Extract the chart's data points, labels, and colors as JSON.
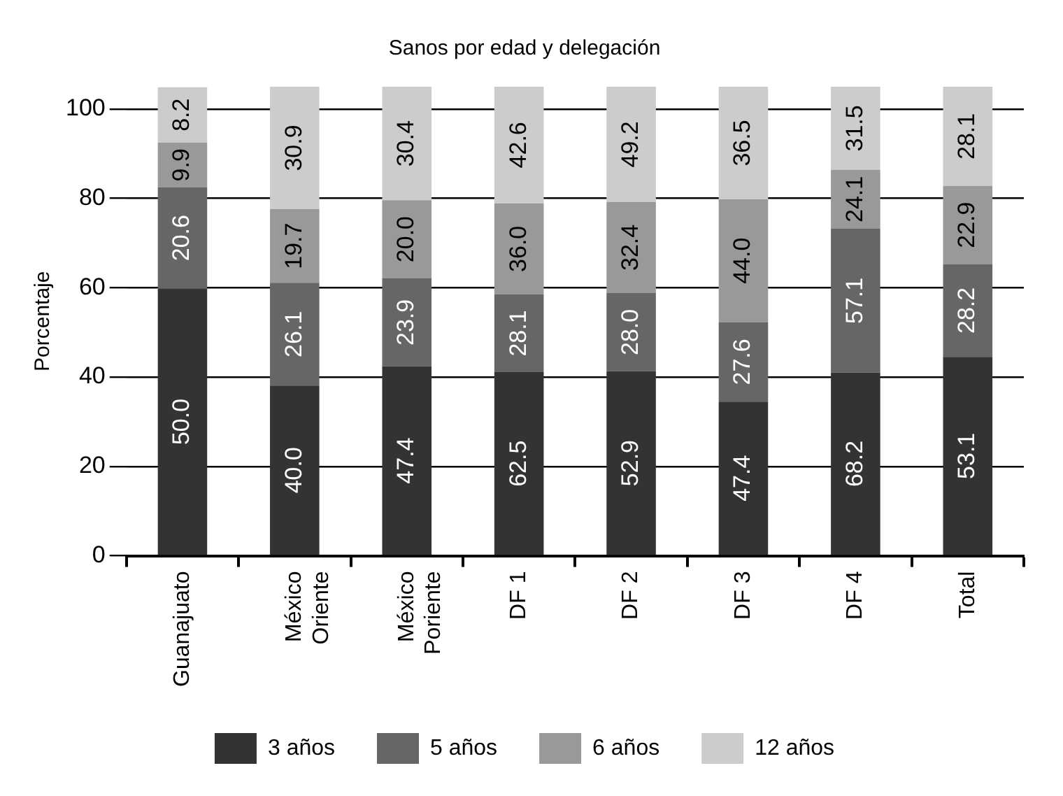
{
  "chart_data": {
    "type": "bar",
    "title": "Sanos por edad y delegación",
    "ylabel": "Porcentaje",
    "categories": [
      "Guanajuato",
      "México Oriente",
      "México Poriente",
      "DF 1",
      "DF 2",
      "DF 3",
      "DF 4",
      "Total"
    ],
    "stacked": true,
    "ylim": [
      0,
      105
    ],
    "yticks": [
      0,
      20,
      40,
      60,
      80,
      100
    ],
    "grid": "y",
    "legend": "bottom",
    "series": [
      {
        "name": "3 años",
        "color": "#333333",
        "values": [
          59.8,
          38.1,
          42.4,
          41.1,
          41.3,
          34.5,
          41.0,
          44.5
        ]
      },
      {
        "name": "5 años",
        "color": "#666666",
        "values": [
          22.7,
          23.0,
          19.7,
          17.4,
          17.5,
          17.8,
          32.2,
          20.8
        ]
      },
      {
        "name": "6 años",
        "color": "#999999",
        "values": [
          10.0,
          16.5,
          17.5,
          20.4,
          20.4,
          27.5,
          13.2,
          17.5
        ]
      },
      {
        "name": "12 años",
        "color": "#cccccc",
        "values": [
          12.4,
          27.4,
          25.4,
          26.1,
          25.8,
          25.2,
          18.6,
          22.2
        ]
      }
    ],
    "annotations": [
      "50.0",
      "20.6",
      "9.9",
      "8.2",
      "40.0",
      "26.1",
      "19.7",
      "30.9",
      "47.4",
      "23.9",
      "20.0",
      "30.4",
      "62.5",
      "28.1",
      "36.0",
      "42.6",
      "52.9",
      "28.0",
      "32.4",
      "49.2",
      "47.4",
      "27.6",
      "44.0",
      "36.5",
      "68.2",
      "57.1",
      "24.1",
      "31.5",
      "53.1",
      "28.2",
      "22.9",
      "28.1"
    ]
  }
}
